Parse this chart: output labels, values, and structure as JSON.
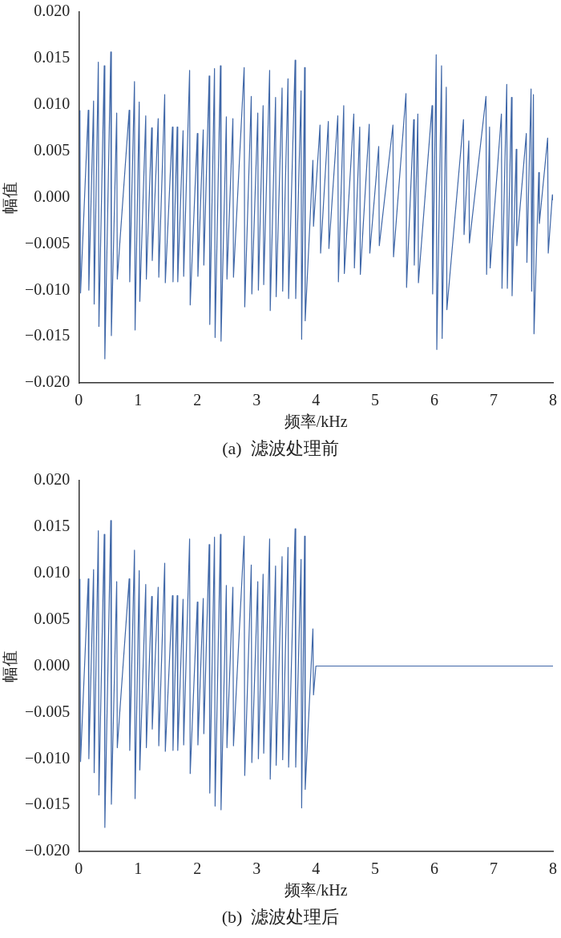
{
  "chart_data": [
    {
      "type": "line",
      "xlabel": "频率/kHz",
      "ylabel": "幅值",
      "annotations": [
        "(a)  滤波处理前"
      ],
      "xlim": [
        0,
        8
      ],
      "xticks": [
        0,
        1,
        2,
        3,
        4,
        5,
        6,
        7,
        8
      ],
      "ylim": [
        -0.02,
        0.02
      ],
      "yticks": [
        {
          "value": -0.02,
          "label": "−0.020"
        },
        {
          "value": -0.015,
          "label": "−0.015"
        },
        {
          "value": -0.01,
          "label": "−0.010"
        },
        {
          "value": -0.005,
          "label": "−0.005"
        },
        {
          "value": 0,
          "label": "0.000"
        },
        {
          "value": 0.005,
          "label": "0.005"
        },
        {
          "value": 0.01,
          "label": "0.010"
        },
        {
          "value": 0.015,
          "label": "0.015"
        },
        {
          "value": 0.02,
          "label": "0.020"
        }
      ],
      "grid": false,
      "legend": false,
      "marker": "none",
      "line_style": "solid",
      "series": [
        {
          "color": "#3f67a8",
          "x": [
            0.02,
            0.03,
            0.16,
            0.17,
            0.25,
            0.26,
            0.33,
            0.34,
            0.43,
            0.44,
            0.54,
            0.55,
            0.64,
            0.65,
            0.85,
            0.86,
            0.94,
            0.95,
            1.02,
            1.03,
            1.13,
            1.14,
            1.23,
            1.24,
            1.34,
            1.35,
            1.45,
            1.46,
            1.58,
            1.59,
            1.66,
            1.67,
            1.76,
            1.77,
            1.87,
            1.88,
            2.0,
            2.01,
            2.1,
            2.11,
            2.2,
            2.21,
            2.29,
            2.3,
            2.39,
            2.4,
            2.49,
            2.5,
            2.6,
            2.61,
            2.79,
            2.8,
            2.91,
            2.92,
            3.02,
            3.03,
            3.11,
            3.12,
            3.22,
            3.23,
            3.32,
            3.33,
            3.43,
            3.44,
            3.53,
            3.54,
            3.65,
            3.66,
            3.75,
            3.76,
            3.81,
            3.82,
            3.95,
            3.96,
            4.07,
            4.08,
            4.21,
            4.22,
            4.37,
            4.38,
            4.47,
            4.48,
            4.64,
            4.65,
            4.74,
            4.75,
            4.9,
            4.91,
            5.06,
            5.07,
            5.3,
            5.31,
            5.52,
            5.53,
            5.65,
            5.66,
            5.72,
            5.73,
            5.96,
            5.97,
            6.03,
            6.04,
            6.12,
            6.13,
            6.2,
            6.21,
            6.49,
            6.5,
            6.58,
            6.59,
            6.87,
            6.88,
            6.93,
            6.94,
            7.13,
            7.14,
            7.22,
            7.23,
            7.3,
            7.31,
            7.38,
            7.39,
            7.55,
            7.56,
            7.63,
            7.64,
            7.67,
            7.68,
            7.76,
            7.77,
            7.91,
            7.92,
            7.99,
            8.0
          ],
          "values": [
            0.0094,
            -0.0103,
            0.0094,
            -0.01,
            0.0104,
            -0.0115,
            0.0146,
            -0.0139,
            0.0142,
            -0.0174,
            0.0157,
            -0.0149,
            0.0091,
            -0.0088,
            0.0094,
            -0.0091,
            0.0125,
            -0.0143,
            0.0103,
            -0.0112,
            0.0088,
            -0.0088,
            0.0075,
            -0.0068,
            0.0085,
            -0.0086,
            0.0111,
            -0.0092,
            0.0076,
            -0.0091,
            0.0076,
            -0.0091,
            0.0072,
            -0.0085,
            0.0137,
            -0.0116,
            0.0069,
            -0.0085,
            0.0073,
            -0.0073,
            0.0131,
            -0.0137,
            0.0139,
            -0.0151,
            0.0142,
            -0.0155,
            0.0087,
            -0.0088,
            0.0085,
            -0.0086,
            0.014,
            -0.0118,
            0.0109,
            -0.0104,
            0.0091,
            -0.01,
            0.0099,
            -0.0094,
            0.0137,
            -0.0122,
            0.0108,
            -0.0107,
            0.0118,
            -0.0101,
            0.0128,
            -0.0109,
            0.0148,
            -0.0109,
            0.0115,
            -0.0153,
            0.014,
            -0.0133,
            0.004,
            -0.0031,
            0.0078,
            -0.006,
            0.0082,
            -0.0055,
            0.0088,
            -0.0091,
            0.0099,
            -0.0082,
            0.009,
            -0.0076,
            0.0076,
            -0.0083,
            0.0079,
            -0.006,
            0.0055,
            -0.0052,
            0.0078,
            -0.0064,
            0.0112,
            -0.0097,
            0.0084,
            -0.0073,
            0.009,
            -0.0092,
            0.0099,
            -0.0104,
            0.0154,
            -0.0164,
            0.0142,
            -0.0152,
            0.0119,
            -0.0121,
            0.0084,
            -0.004,
            0.0061,
            -0.0049,
            0.0109,
            -0.0083,
            0.0076,
            -0.0076,
            0.009,
            -0.0098,
            0.0122,
            -0.0098,
            0.0108,
            -0.0106,
            0.0052,
            -0.0052,
            0.0069,
            -0.007,
            0.0117,
            -0.0101,
            0.0111,
            -0.0147,
            0.0027,
            -0.0028,
            0.0064,
            -0.006,
            0.0003,
            -0.0003
          ]
        }
      ]
    },
    {
      "type": "line",
      "xlabel": "频率/kHz",
      "ylabel": "幅值",
      "annotations": [
        "(b)  滤波处理后"
      ],
      "xlim": [
        0,
        8
      ],
      "xticks": [
        0,
        1,
        2,
        3,
        4,
        5,
        6,
        7,
        8
      ],
      "ylim": [
        -0.02,
        0.02
      ],
      "yticks": [
        {
          "value": -0.02,
          "label": "−0.020"
        },
        {
          "value": -0.015,
          "label": "−0.015"
        },
        {
          "value": -0.01,
          "label": "−0.010"
        },
        {
          "value": -0.005,
          "label": "−0.005"
        },
        {
          "value": 0,
          "label": "0.000"
        },
        {
          "value": 0.005,
          "label": "0.005"
        },
        {
          "value": 0.01,
          "label": "0.010"
        },
        {
          "value": 0.015,
          "label": "0.015"
        },
        {
          "value": 0.02,
          "label": "0.020"
        }
      ],
      "grid": false,
      "legend": false,
      "marker": "none",
      "line_style": "solid",
      "series": [
        {
          "color": "#3f67a8",
          "x": [
            0.02,
            0.03,
            0.16,
            0.17,
            0.25,
            0.26,
            0.33,
            0.34,
            0.43,
            0.44,
            0.54,
            0.55,
            0.64,
            0.65,
            0.85,
            0.86,
            0.94,
            0.95,
            1.02,
            1.03,
            1.13,
            1.14,
            1.23,
            1.24,
            1.34,
            1.35,
            1.45,
            1.46,
            1.58,
            1.59,
            1.66,
            1.67,
            1.76,
            1.77,
            1.87,
            1.88,
            2.0,
            2.01,
            2.1,
            2.11,
            2.2,
            2.21,
            2.29,
            2.3,
            2.39,
            2.4,
            2.49,
            2.5,
            2.6,
            2.61,
            2.79,
            2.8,
            2.91,
            2.92,
            3.02,
            3.03,
            3.11,
            3.12,
            3.22,
            3.23,
            3.32,
            3.33,
            3.43,
            3.44,
            3.53,
            3.54,
            3.65,
            3.66,
            3.75,
            3.76,
            3.81,
            3.82,
            3.95,
            3.96,
            4.0,
            8.0
          ],
          "values": [
            0.0094,
            -0.0103,
            0.0094,
            -0.01,
            0.0104,
            -0.0115,
            0.0146,
            -0.0139,
            0.0142,
            -0.0174,
            0.0157,
            -0.0149,
            0.0091,
            -0.0088,
            0.0094,
            -0.0091,
            0.0125,
            -0.0143,
            0.0103,
            -0.0112,
            0.0088,
            -0.0088,
            0.0075,
            -0.0068,
            0.0085,
            -0.0086,
            0.0111,
            -0.0092,
            0.0076,
            -0.0091,
            0.0076,
            -0.0091,
            0.0072,
            -0.0085,
            0.0137,
            -0.0116,
            0.0069,
            -0.0085,
            0.0073,
            -0.0073,
            0.0131,
            -0.0137,
            0.0139,
            -0.0151,
            0.0142,
            -0.0155,
            0.0087,
            -0.0088,
            0.0085,
            -0.0086,
            0.014,
            -0.0118,
            0.0109,
            -0.0104,
            0.0091,
            -0.01,
            0.0099,
            -0.0094,
            0.0137,
            -0.0122,
            0.0108,
            -0.0107,
            0.0118,
            -0.0101,
            0.0128,
            -0.0109,
            0.0148,
            -0.0109,
            0.0115,
            -0.0153,
            0.014,
            -0.0133,
            0.004,
            -0.0031,
            0,
            0
          ]
        }
      ]
    }
  ]
}
